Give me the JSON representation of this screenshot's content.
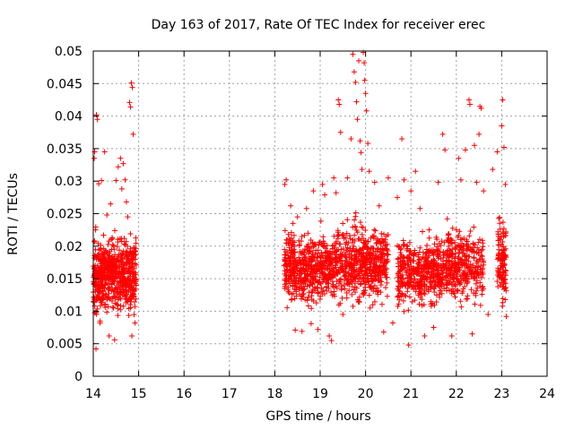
{
  "chart_data": {
    "type": "scatter",
    "title": "Day 163 of 2017, Rate Of TEC Index for receiver erec",
    "xlabel": "GPS time / hours",
    "ylabel": "ROTI / TECUs",
    "xlim": [
      14,
      24
    ],
    "ylim": [
      0,
      0.05
    ],
    "xticks": [
      "14",
      "15",
      "16",
      "17",
      "18",
      "19",
      "20",
      "21",
      "22",
      "23",
      "24"
    ],
    "yticks": [
      "0",
      "0.005",
      "0.01",
      "0.015",
      "0.02",
      "0.025",
      "0.03",
      "0.035",
      "0.04",
      "0.045",
      "0.05"
    ],
    "grid": true,
    "marker": "+",
    "color": "#ff0000",
    "series": [
      {
        "name": "ROTI",
        "points": [
          [
            14.02,
            0.0335
          ],
          [
            14.03,
            0.0345
          ],
          [
            14.05,
            0.0225
          ],
          [
            14.06,
            0.0042
          ],
          [
            14.07,
            0.0402
          ],
          [
            14.09,
            0.0395
          ],
          [
            14.1,
            0.0118
          ],
          [
            14.12,
            0.0296
          ],
          [
            14.15,
            0.0082
          ],
          [
            14.18,
            0.0301
          ],
          [
            14.2,
            0.0175
          ],
          [
            14.25,
            0.0345
          ],
          [
            14.3,
            0.0248
          ],
          [
            14.35,
            0.0062
          ],
          [
            14.38,
            0.0265
          ],
          [
            14.42,
            0.0212
          ],
          [
            14.47,
            0.0056
          ],
          [
            14.5,
            0.0301
          ],
          [
            14.55,
            0.0322
          ],
          [
            14.6,
            0.0335
          ],
          [
            14.63,
            0.0288
          ],
          [
            14.66,
            0.0327
          ],
          [
            14.7,
            0.0302
          ],
          [
            14.73,
            0.0268
          ],
          [
            14.76,
            0.0245
          ],
          [
            14.8,
            0.0421
          ],
          [
            14.82,
            0.0414
          ],
          [
            14.84,
            0.0451
          ],
          [
            14.86,
            0.0444
          ],
          [
            14.88,
            0.0372
          ],
          [
            14.9,
            0.0198
          ],
          [
            14.92,
            0.0082
          ],
          [
            14.85,
            0.0062
          ],
          [
            18.22,
            0.0295
          ],
          [
            18.25,
            0.0302
          ],
          [
            18.3,
            0.0218
          ],
          [
            18.35,
            0.0262
          ],
          [
            18.4,
            0.0235
          ],
          [
            18.45,
            0.0071
          ],
          [
            18.5,
            0.0245
          ],
          [
            18.6,
            0.0069
          ],
          [
            18.7,
            0.0258
          ],
          [
            18.8,
            0.0081
          ],
          [
            18.85,
            0.0285
          ],
          [
            18.95,
            0.0072
          ],
          [
            19.05,
            0.0295
          ],
          [
            19.1,
            0.0279
          ],
          [
            19.2,
            0.0062
          ],
          [
            19.25,
            0.0055
          ],
          [
            19.3,
            0.0305
          ],
          [
            19.35,
            0.0282
          ],
          [
            19.4,
            0.0425
          ],
          [
            19.42,
            0.0418
          ],
          [
            19.45,
            0.0375
          ],
          [
            19.5,
            0.0095
          ],
          [
            19.6,
            0.0305
          ],
          [
            19.68,
            0.0365
          ],
          [
            19.72,
            0.0495
          ],
          [
            19.75,
            0.0468
          ],
          [
            19.78,
            0.0452
          ],
          [
            19.8,
            0.0422
          ],
          [
            19.82,
            0.0395
          ],
          [
            19.85,
            0.0485
          ],
          [
            19.88,
            0.0362
          ],
          [
            19.9,
            0.0344
          ],
          [
            19.92,
            0.0318
          ],
          [
            19.95,
            0.0498
          ],
          [
            19.97,
            0.0482
          ],
          [
            19.98,
            0.0455
          ],
          [
            20.0,
            0.0435
          ],
          [
            20.02,
            0.0408
          ],
          [
            20.05,
            0.0358
          ],
          [
            20.08,
            0.0315
          ],
          [
            20.1,
            0.0105
          ],
          [
            20.2,
            0.0298
          ],
          [
            20.3,
            0.0262
          ],
          [
            20.4,
            0.0068
          ],
          [
            20.5,
            0.0305
          ],
          [
            20.6,
            0.0082
          ],
          [
            20.7,
            0.0275
          ],
          [
            20.8,
            0.0365
          ],
          [
            20.85,
            0.0302
          ],
          [
            20.95,
            0.0048
          ],
          [
            21.0,
            0.0285
          ],
          [
            21.1,
            0.0315
          ],
          [
            21.2,
            0.0258
          ],
          [
            21.3,
            0.0062
          ],
          [
            21.4,
            0.0225
          ],
          [
            21.5,
            0.0075
          ],
          [
            21.6,
            0.0298
          ],
          [
            21.7,
            0.0372
          ],
          [
            21.75,
            0.0348
          ],
          [
            21.8,
            0.0242
          ],
          [
            21.9,
            0.0062
          ],
          [
            22.0,
            0.0225
          ],
          [
            22.05,
            0.0335
          ],
          [
            22.1,
            0.0302
          ],
          [
            22.2,
            0.0348
          ],
          [
            22.28,
            0.0425
          ],
          [
            22.3,
            0.0418
          ],
          [
            22.35,
            0.0065
          ],
          [
            22.4,
            0.0355
          ],
          [
            22.45,
            0.0298
          ],
          [
            22.5,
            0.0372
          ],
          [
            22.52,
            0.0415
          ],
          [
            22.55,
            0.0412
          ],
          [
            22.6,
            0.0285
          ],
          [
            22.7,
            0.0095
          ],
          [
            22.8,
            0.0318
          ],
          [
            22.9,
            0.0345
          ],
          [
            23.0,
            0.0385
          ],
          [
            23.02,
            0.0425
          ],
          [
            23.05,
            0.0352
          ],
          [
            23.08,
            0.0295
          ],
          [
            23.1,
            0.0092
          ]
        ]
      }
    ]
  }
}
